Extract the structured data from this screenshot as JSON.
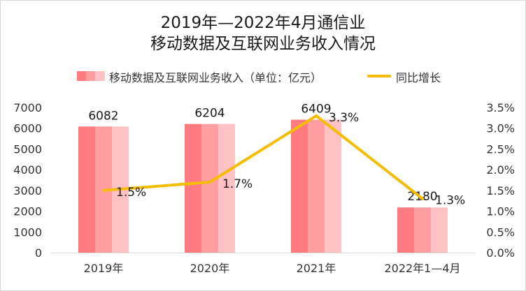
{
  "title_line1": "2019年—2022年4月通信业",
  "title_line2": "移动数据及互联网业务收入情况",
  "chart_data": {
    "type": "bar",
    "categories": [
      "2019年",
      "2020年",
      "2021年",
      "2022年1—4月"
    ],
    "series": [
      {
        "name": "移动数据及互联网业务收入（单位：亿元）",
        "type": "bar",
        "axis": "left",
        "values": [
          6082,
          6204,
          6409,
          2180
        ],
        "labels": [
          "6082",
          "6204",
          "6409",
          "2180"
        ]
      },
      {
        "name": "同比增长",
        "type": "line",
        "axis": "right",
        "values": [
          1.5,
          1.7,
          3.3,
          1.3
        ],
        "labels": [
          "1.5%",
          "1.7%",
          "3.3%",
          "1.3%"
        ]
      }
    ],
    "ylim_left": [
      0,
      7000
    ],
    "yticks_left": [
      "0",
      "1000",
      "2000",
      "3000",
      "4000",
      "5000",
      "6000",
      "7000"
    ],
    "ylim_right": [
      0,
      3.5
    ],
    "yticks_right": [
      "0.0%",
      "0.5%",
      "1.0%",
      "1.5%",
      "2.0%",
      "2.5%",
      "3.0%",
      "3.5%"
    ],
    "legend_position": "top",
    "grid": false,
    "colors": {
      "bar_1": "#ff7b7f",
      "bar_2": "#ff9ea1",
      "bar_3": "#ffc2c4",
      "line": "#f5bd02"
    }
  }
}
